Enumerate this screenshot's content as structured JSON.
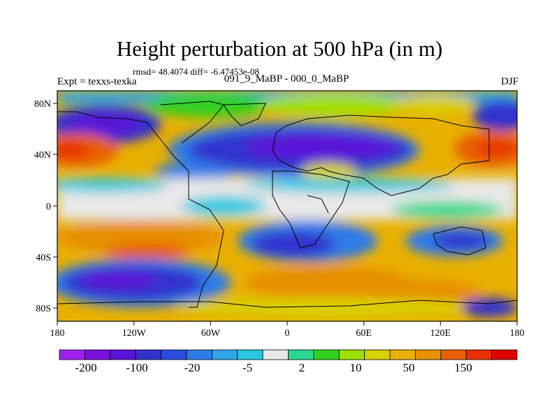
{
  "header": {
    "title": "Height perturbation at 500 hPa (in m)",
    "stats": "rmsd= 48.4074 diff= -6.47453e-08",
    "expt": "Expt = texxs-texka",
    "subtitle": "091_9_MaBP - 000_0_MaBP",
    "season": "DJF"
  },
  "map": {
    "x_ticks": [
      "180",
      "120W",
      "60W",
      "0",
      "60E",
      "120E",
      "180"
    ],
    "y_ticks": [
      "80N",
      "40N",
      "0",
      "40S",
      "80S"
    ]
  },
  "colorbar": {
    "labels": [
      "-200",
      "-100",
      "-20",
      "-5",
      "2",
      "10",
      "50",
      "150"
    ],
    "colors": [
      "#a020f0",
      "#7a10e0",
      "#5a14d8",
      "#3232cc",
      "#2a4ce0",
      "#2f7be8",
      "#2ea6e8",
      "#28c8e0",
      "#e8e8e8",
      "#2ad890",
      "#30d020",
      "#a0e000",
      "#d8d000",
      "#e8b000",
      "#e89000",
      "#e86000",
      "#e83000",
      "#e00000"
    ]
  }
}
